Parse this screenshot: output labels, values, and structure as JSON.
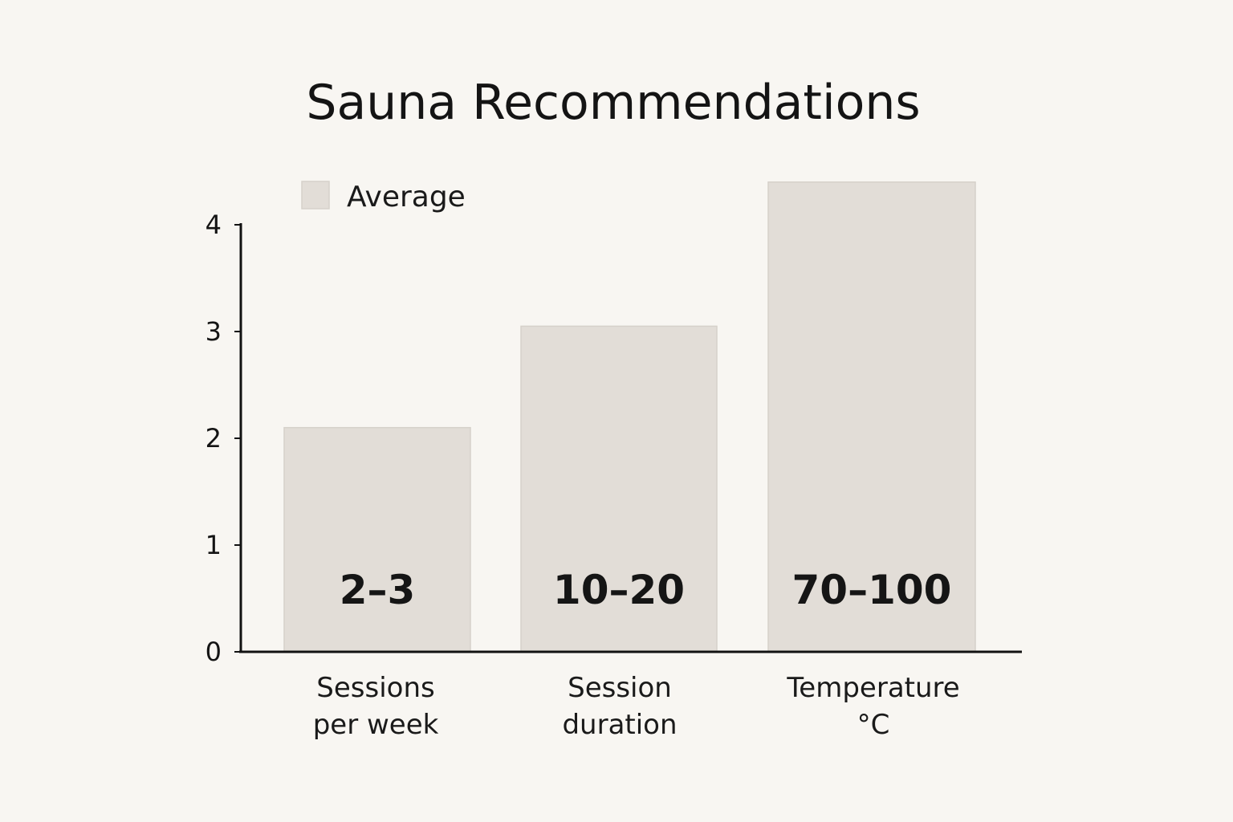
{
  "chart_data": {
    "type": "bar",
    "title": "Sauna Recommendations",
    "legend": {
      "label": "Average",
      "position": "top-left"
    },
    "categories": [
      [
        "Sessions",
        "per week"
      ],
      [
        "Session",
        "duration"
      ],
      [
        "Temperature",
        "°C"
      ]
    ],
    "series": [
      {
        "name": "Average",
        "values": [
          2.1,
          3.05,
          4.4
        ],
        "data_labels": [
          "2–3",
          "10–20",
          "70–100"
        ]
      }
    ],
    "yticks": [
      "0",
      "1",
      "2",
      "3",
      "4"
    ],
    "ylim": [
      0,
      4
    ],
    "xlabel": "",
    "ylabel": "",
    "grid": false,
    "colors": {
      "bar": "#e2ddd7",
      "bar_edge": "#d6d1ca",
      "axis": "#121212"
    }
  }
}
